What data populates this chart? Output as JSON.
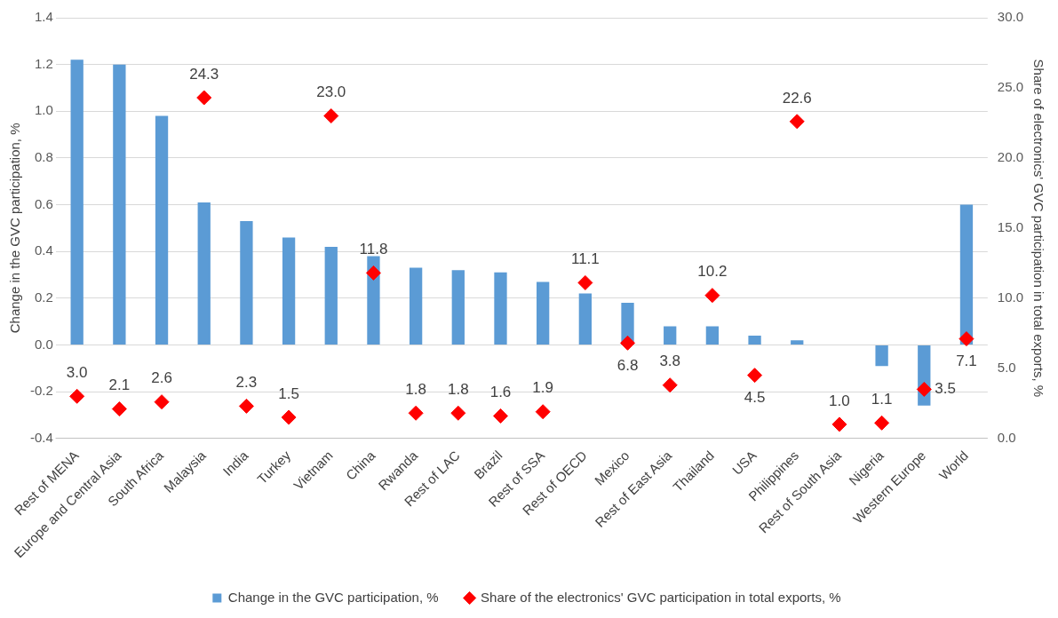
{
  "chart_data": {
    "type": "bar",
    "ylabel": "Change in the GVC participation, %",
    "y2label": "Share of electronics' GVC participation in total exports, %",
    "categories": [
      "Rest of MENA",
      "Europe and Central Asia",
      "South Africa",
      "Malaysia",
      "India",
      "Turkey",
      "Vietnam",
      "China",
      "Rwanda",
      "Rest of LAC",
      "Brazil",
      "Rest of SSA",
      "Rest of OECD",
      "Mexico",
      "Rest of East Asia",
      "Thailand",
      "USA",
      "Philippines",
      "Rest of South Asia",
      "Nigeria",
      "Western Europe",
      "World"
    ],
    "series": [
      {
        "name": "Change in the GVC participation, %",
        "type": "bar",
        "color": "#5b9bd5",
        "values": [
          1.22,
          1.2,
          0.98,
          0.61,
          0.53,
          0.46,
          0.42,
          0.38,
          0.33,
          0.32,
          0.31,
          0.27,
          0.22,
          0.18,
          0.08,
          0.08,
          0.04,
          0.02,
          0.0,
          -0.09,
          -0.26,
          0.6
        ]
      },
      {
        "name": "Share of the electronics' GVC participation in total exports, %",
        "type": "scatter",
        "axis": "y2",
        "marker": "diamond",
        "color": "#ff0000",
        "values": [
          3.0,
          2.1,
          2.6,
          24.3,
          2.3,
          1.5,
          23.0,
          11.8,
          1.8,
          1.8,
          1.6,
          1.9,
          11.1,
          6.8,
          3.8,
          10.2,
          4.5,
          22.6,
          1.0,
          1.1,
          3.5,
          7.1
        ],
        "value_labels": [
          "3.0",
          "2.1",
          "2.6",
          "24.3",
          "2.3",
          "1.5",
          "23.0",
          "11.8",
          "1.8",
          "1.8",
          "1.6",
          "1.9",
          "11.1",
          "6.8",
          "3.8",
          "10.2",
          "4.5",
          "22.6",
          "1.0",
          "1.1",
          "3.5",
          "7.1"
        ]
      }
    ],
    "ylim": [
      -0.4,
      1.4
    ],
    "yticks": [
      {
        "value": -0.4,
        "label": "-0.4"
      },
      {
        "value": -0.2,
        "label": "-0.2"
      },
      {
        "value": 0,
        "label": "0.0"
      },
      {
        "value": 0.2,
        "label": "0.2"
      },
      {
        "value": 0.4,
        "label": "0.4"
      },
      {
        "value": 0.6,
        "label": "0.6"
      },
      {
        "value": 0.8,
        "label": "0.8"
      },
      {
        "value": 1,
        "label": "1.0"
      },
      {
        "value": 1.2,
        "label": "1.2"
      },
      {
        "value": 1.4,
        "label": "1.4"
      }
    ],
    "y2lim": [
      0,
      30
    ],
    "y2ticks": [
      {
        "value": 0,
        "label": "0.0"
      },
      {
        "value": 5,
        "label": "5.0"
      },
      {
        "value": 10,
        "label": "10.0"
      },
      {
        "value": 15,
        "label": "15.0"
      },
      {
        "value": 20,
        "label": "20.0"
      },
      {
        "value": 25,
        "label": "25.0"
      },
      {
        "value": 30,
        "label": "30.0"
      }
    ],
    "grid": "y",
    "legend": "bottom"
  }
}
